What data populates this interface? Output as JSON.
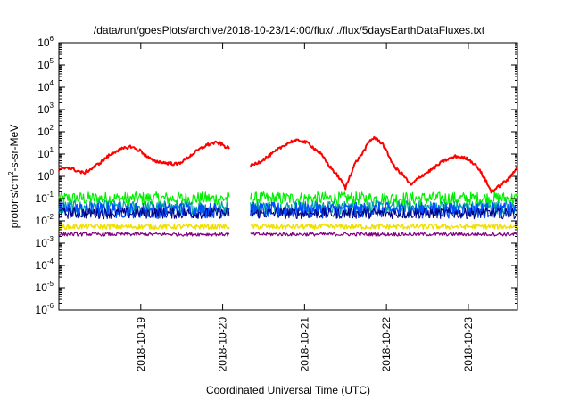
{
  "chart_data": {
    "type": "line",
    "title": "/data/run/goesPlots/archive/2018-10-23/14:00/flux/../flux/5daysEarthDataFluxes.txt",
    "xlabel": "Coordinated Universal Time (UTC)",
    "ylabel": {
      "base": "protons/cm",
      "sup": "2",
      "rest": "-s-sr-MeV"
    },
    "yscale": "log",
    "ylim_exp": [
      -6,
      6
    ],
    "ytick_exps": [
      -6,
      -5,
      -4,
      -3,
      -2,
      -1,
      0,
      1,
      2,
      3,
      4,
      5,
      6
    ],
    "xlim": [
      0.0,
      5.6
    ],
    "x_ticks": [
      {
        "x": 1.0,
        "label": "2018-10-19"
      },
      {
        "x": 2.0,
        "label": "2018-10-20"
      },
      {
        "x": 3.0,
        "label": "2018-10-21"
      },
      {
        "x": 4.0,
        "label": "2018-10-22"
      },
      {
        "x": 5.0,
        "label": "2018-10-23"
      }
    ],
    "gaps": [
      [
        2.08,
        2.33
      ]
    ],
    "grid": false,
    "series": [
      {
        "color": "#ff0000",
        "width": 2.0,
        "noise": 0.07,
        "points": [
          [
            0.0,
            1.8
          ],
          [
            0.1,
            2.6
          ],
          [
            0.2,
            1.9
          ],
          [
            0.3,
            1.4
          ],
          [
            0.4,
            2.2
          ],
          [
            0.5,
            4.0
          ],
          [
            0.6,
            8.0
          ],
          [
            0.7,
            14.0
          ],
          [
            0.8,
            18.0
          ],
          [
            0.88,
            22.0
          ],
          [
            0.95,
            16.0
          ],
          [
            1.0,
            14.0
          ],
          [
            1.05,
            9.0
          ],
          [
            1.15,
            5.0
          ],
          [
            1.3,
            4.0
          ],
          [
            1.45,
            3.5
          ],
          [
            1.55,
            6.0
          ],
          [
            1.7,
            15.0
          ],
          [
            1.8,
            25.0
          ],
          [
            1.9,
            32.0
          ],
          [
            1.97,
            30.0
          ],
          [
            2.03,
            22.0
          ],
          [
            2.08,
            18.0
          ],
          [
            2.33,
            2.8
          ],
          [
            2.45,
            4.5
          ],
          [
            2.6,
            10.0
          ],
          [
            2.75,
            25.0
          ],
          [
            2.85,
            38.0
          ],
          [
            2.95,
            40.0
          ],
          [
            3.05,
            30.0
          ],
          [
            3.2,
            10.0
          ],
          [
            3.3,
            3.0
          ],
          [
            3.42,
            0.9
          ],
          [
            3.5,
            0.3
          ],
          [
            3.57,
            1.5
          ],
          [
            3.62,
            4.0
          ],
          [
            3.7,
            10.0
          ],
          [
            3.8,
            40.0
          ],
          [
            3.85,
            55.0
          ],
          [
            3.95,
            30.0
          ],
          [
            4.05,
            6.0
          ],
          [
            4.1,
            2.5
          ],
          [
            4.2,
            1.2
          ],
          [
            4.3,
            0.4
          ],
          [
            4.4,
            0.9
          ],
          [
            4.55,
            2.0
          ],
          [
            4.7,
            5.0
          ],
          [
            4.85,
            8.0
          ],
          [
            5.0,
            6.0
          ],
          [
            5.1,
            3.0
          ],
          [
            5.2,
            0.8
          ],
          [
            5.28,
            0.2
          ],
          [
            5.35,
            0.3
          ],
          [
            5.45,
            0.6
          ],
          [
            5.5,
            0.8
          ],
          [
            5.6,
            3.0
          ]
        ]
      },
      {
        "color": "#00ee00",
        "width": 1.2,
        "noise": 0.3,
        "points": [
          [
            0.0,
            0.1
          ],
          [
            5.6,
            0.1
          ]
        ]
      },
      {
        "color": "#00a0a0",
        "width": 1.2,
        "noise": 0.3,
        "points": [
          [
            0.0,
            0.04
          ],
          [
            5.6,
            0.04
          ]
        ]
      },
      {
        "color": "#0050ff",
        "width": 1.4,
        "noise": 0.35,
        "points": [
          [
            0.0,
            0.03
          ],
          [
            5.6,
            0.03
          ]
        ]
      },
      {
        "color": "#000080",
        "width": 1.0,
        "noise": 0.25,
        "points": [
          [
            0.0,
            0.022
          ],
          [
            5.6,
            0.022
          ]
        ]
      },
      {
        "color": "#f0e000",
        "width": 1.4,
        "noise": 0.12,
        "points": [
          [
            0.0,
            0.0055
          ],
          [
            5.6,
            0.0055
          ]
        ]
      },
      {
        "color": "#800080",
        "width": 1.2,
        "noise": 0.08,
        "points": [
          [
            0.0,
            0.0025
          ],
          [
            5.6,
            0.0025
          ]
        ]
      }
    ]
  }
}
